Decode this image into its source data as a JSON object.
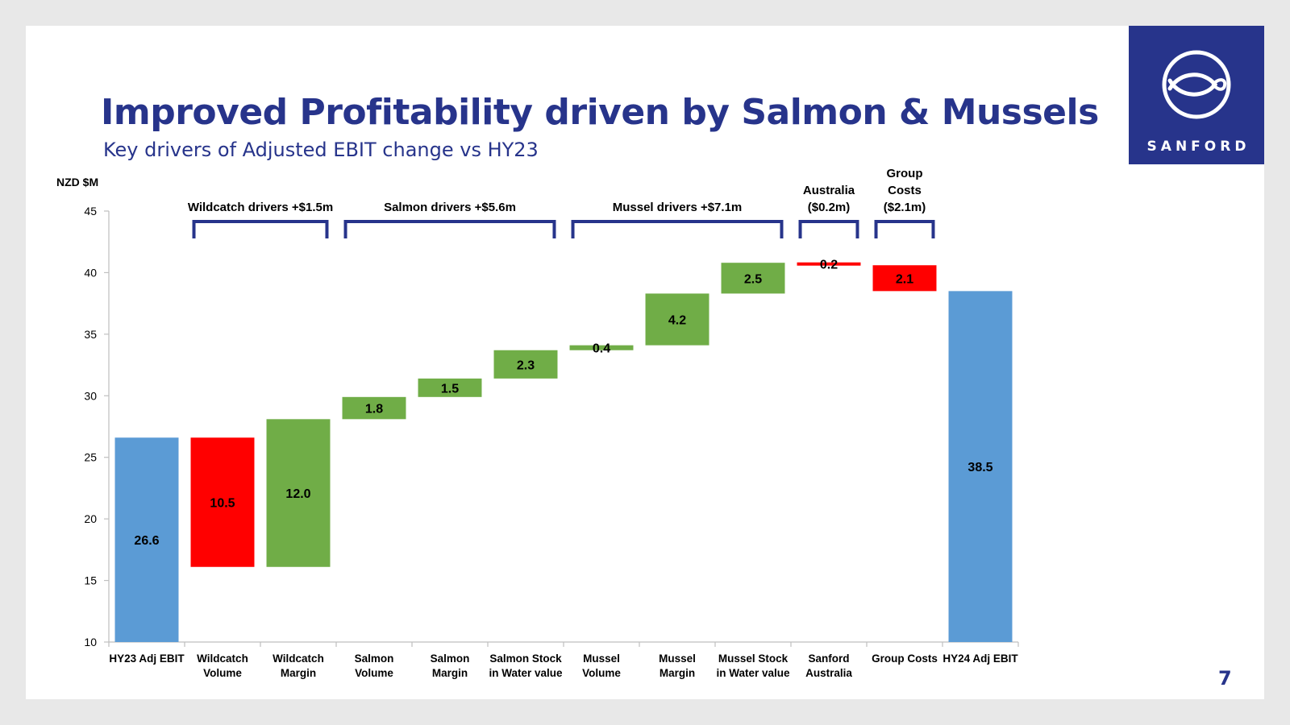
{
  "slide": {
    "title": "Improved Profitability driven by Salmon & Mussels",
    "subtitle": "Key drivers of Adjusted EBIT change vs HY23",
    "page_number": "7",
    "logo_text": "SANFORD",
    "logo_icon": "fish-heart-icon"
  },
  "colors": {
    "brand": "#27348b",
    "total": "#5b9bd5",
    "increase": "#70ad47",
    "decrease": "#ff0000"
  },
  "chart_data": {
    "type": "bar",
    "subtype": "waterfall",
    "ylabel": "NZD $M",
    "ylim": [
      10,
      45
    ],
    "yticks": [
      10,
      15,
      20,
      25,
      30,
      35,
      40,
      45
    ],
    "grid": false,
    "bars": [
      {
        "category": [
          "HY23 Adj EBIT"
        ],
        "kind": "total",
        "start": 0,
        "end": 26.6,
        "label": "26.6"
      },
      {
        "category": [
          "Wildcatch",
          "Volume"
        ],
        "kind": "decrease",
        "start": 26.6,
        "end": 16.1,
        "label": "10.5"
      },
      {
        "category": [
          "Wildcatch",
          "Margin"
        ],
        "kind": "increase",
        "start": 16.1,
        "end": 28.1,
        "label": "12.0"
      },
      {
        "category": [
          "Salmon",
          "Volume"
        ],
        "kind": "increase",
        "start": 28.1,
        "end": 29.9,
        "label": "1.8"
      },
      {
        "category": [
          "Salmon",
          "Margin"
        ],
        "kind": "increase",
        "start": 29.9,
        "end": 31.4,
        "label": "1.5"
      },
      {
        "category": [
          "Salmon Stock",
          "in Water value"
        ],
        "kind": "increase",
        "start": 31.4,
        "end": 33.7,
        "label": "2.3"
      },
      {
        "category": [
          "Mussel",
          "Volume"
        ],
        "kind": "increase",
        "start": 33.7,
        "end": 34.1,
        "label": "0.4"
      },
      {
        "category": [
          "Mussel",
          "Margin"
        ],
        "kind": "increase",
        "start": 34.1,
        "end": 38.3,
        "label": "4.2"
      },
      {
        "category": [
          "Mussel Stock",
          "in Water value"
        ],
        "kind": "increase",
        "start": 38.3,
        "end": 40.8,
        "label": "2.5"
      },
      {
        "category": [
          "Sanford",
          "Australia"
        ],
        "kind": "decrease",
        "start": 40.8,
        "end": 40.6,
        "label": "0.2"
      },
      {
        "category": [
          "Group Costs"
        ],
        "kind": "decrease",
        "start": 40.6,
        "end": 38.5,
        "label": "2.1"
      },
      {
        "category": [
          "HY24 Adj EBIT"
        ],
        "kind": "total",
        "start": 0,
        "end": 38.5,
        "label": "38.5"
      }
    ],
    "groups": [
      {
        "label": [
          "Wildcatch drivers +$1.5m"
        ],
        "first": 1,
        "last": 2
      },
      {
        "label": [
          "Salmon drivers +$5.6m"
        ],
        "first": 3,
        "last": 5
      },
      {
        "label": [
          "Mussel drivers +$7.1m"
        ],
        "first": 6,
        "last": 8
      },
      {
        "label": [
          "Australia",
          "($0.2m)"
        ],
        "first": 9,
        "last": 9
      },
      {
        "label": [
          "Group",
          "Costs",
          "($2.1m)"
        ],
        "first": 10,
        "last": 10
      }
    ]
  }
}
